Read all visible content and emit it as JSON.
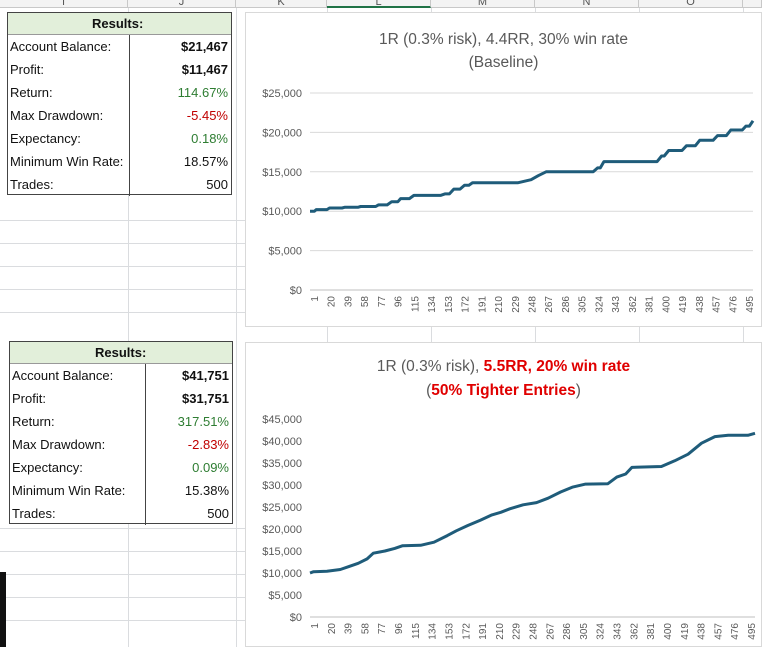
{
  "column_headers": [
    "I",
    "J",
    "K",
    "L",
    "M",
    "N",
    "O"
  ],
  "table1": {
    "header": "Results:",
    "rows": [
      {
        "label": "Account Balance:",
        "value": "$21,467",
        "style": "bold"
      },
      {
        "label": "Profit:",
        "value": "$11,467",
        "style": "bold"
      },
      {
        "label": "Return:",
        "value": "114.67%",
        "style": "green"
      },
      {
        "label": "Max Drawdown:",
        "value": "-5.45%",
        "style": "red"
      },
      {
        "label": "Expectancy:",
        "value": "0.18%",
        "style": "green"
      },
      {
        "label": "Minimum Win Rate:",
        "value": "18.57%",
        "style": "norm"
      },
      {
        "label": "Trades:",
        "value": "500",
        "style": "norm"
      }
    ]
  },
  "table2": {
    "header": "Results:",
    "rows": [
      {
        "label": "Account Balance:",
        "value": "$41,751",
        "style": "bold"
      },
      {
        "label": "Profit:",
        "value": "$31,751",
        "style": "bold"
      },
      {
        "label": "Return:",
        "value": "317.51%",
        "style": "green"
      },
      {
        "label": "Max Drawdown:",
        "value": "-2.83%",
        "style": "red"
      },
      {
        "label": "Expectancy:",
        "value": "0.09%",
        "style": "green"
      },
      {
        "label": "Minimum Win Rate:",
        "value": "15.38%",
        "style": "norm"
      },
      {
        "label": "Trades:",
        "value": "500",
        "style": "norm"
      }
    ]
  },
  "colors": {
    "line": "#1f5c7a",
    "header_fill": "#e2efda",
    "title_red": "#e00000"
  },
  "chart_data": [
    {
      "type": "line",
      "title_line1": "1R (0.3% risk), 4.4RR, 30% win rate",
      "title_line2": "(Baseline)",
      "xlabel": "",
      "ylabel": "",
      "x_ticks": [
        "1",
        "20",
        "39",
        "58",
        "77",
        "96",
        "115",
        "134",
        "153",
        "172",
        "191",
        "210",
        "229",
        "248",
        "267",
        "286",
        "305",
        "324",
        "343",
        "362",
        "381",
        "400",
        "419",
        "438",
        "457",
        "476",
        "495"
      ],
      "y_ticks": [
        "$0",
        "$5,000",
        "$10,000",
        "$15,000",
        "$20,000",
        "$25,000"
      ],
      "ylim": [
        0,
        25000
      ],
      "xlim": [
        1,
        500
      ],
      "grid": "horizontal",
      "series": [
        {
          "values": [
            [
              1,
              10000
            ],
            [
              6,
              10000
            ],
            [
              8,
              10200
            ],
            [
              20,
              10200
            ],
            [
              23,
              10400
            ],
            [
              37,
              10400
            ],
            [
              40,
              10500
            ],
            [
              55,
              10500
            ],
            [
              58,
              10600
            ],
            [
              75,
              10600
            ],
            [
              78,
              10800
            ],
            [
              88,
              10800
            ],
            [
              93,
              11200
            ],
            [
              100,
              11200
            ],
            [
              103,
              11600
            ],
            [
              113,
              11600
            ],
            [
              118,
              12000
            ],
            [
              148,
              12000
            ],
            [
              153,
              12200
            ],
            [
              158,
              12200
            ],
            [
              163,
              12800
            ],
            [
              170,
              12800
            ],
            [
              175,
              13300
            ],
            [
              180,
              13300
            ],
            [
              184,
              13600
            ],
            [
              235,
              13600
            ],
            [
              250,
              14000
            ],
            [
              258,
              14500
            ],
            [
              267,
              15000
            ],
            [
              320,
              15000
            ],
            [
              325,
              15500
            ],
            [
              328,
              15500
            ],
            [
              332,
              16300
            ],
            [
              392,
              16300
            ],
            [
              397,
              17000
            ],
            [
              400,
              17000
            ],
            [
              405,
              17700
            ],
            [
              420,
              17700
            ],
            [
              425,
              18300
            ],
            [
              435,
              18300
            ],
            [
              440,
              19000
            ],
            [
              455,
              19000
            ],
            [
              460,
              19600
            ],
            [
              470,
              19600
            ],
            [
              475,
              20300
            ],
            [
              488,
              20300
            ],
            [
              492,
              20800
            ],
            [
              496,
              20800
            ],
            [
              500,
              21467
            ]
          ]
        }
      ]
    },
    {
      "type": "line",
      "title_plain": "1R (0.3% risk), ",
      "title_red1": "5.5RR, 20% win rate",
      "title_open": "(",
      "title_red2": "50% Tighter Entries",
      "title_close": ")",
      "xlabel": "",
      "ylabel": "",
      "x_ticks": [
        "1",
        "20",
        "39",
        "58",
        "77",
        "96",
        "115",
        "134",
        "153",
        "172",
        "191",
        "210",
        "229",
        "248",
        "267",
        "286",
        "305",
        "324",
        "343",
        "362",
        "381",
        "400",
        "419",
        "438",
        "457",
        "476",
        "495"
      ],
      "y_ticks": [
        "$0",
        "$5,000",
        "$10,000",
        "$15,000",
        "$20,000",
        "$25,000",
        "$30,000",
        "$35,000",
        "$40,000",
        "$45,000"
      ],
      "ylim": [
        0,
        45000
      ],
      "xlim": [
        1,
        500
      ],
      "grid": "none",
      "series": [
        {
          "values": [
            [
              1,
              10000
            ],
            [
              5,
              10300
            ],
            [
              20,
              10400
            ],
            [
              35,
              10800
            ],
            [
              45,
              11500
            ],
            [
              55,
              12200
            ],
            [
              65,
              13200
            ],
            [
              72,
              14500
            ],
            [
              85,
              15000
            ],
            [
              96,
              15600
            ],
            [
              105,
              16200
            ],
            [
              125,
              16300
            ],
            [
              140,
              17000
            ],
            [
              155,
              18500
            ],
            [
              165,
              19600
            ],
            [
              178,
              20800
            ],
            [
              192,
              22000
            ],
            [
              205,
              23200
            ],
            [
              215,
              23800
            ],
            [
              225,
              24600
            ],
            [
              240,
              25500
            ],
            [
              255,
              26000
            ],
            [
              268,
              27000
            ],
            [
              282,
              28400
            ],
            [
              295,
              29500
            ],
            [
              310,
              30200
            ],
            [
              335,
              30300
            ],
            [
              345,
              31800
            ],
            [
              355,
              32500
            ],
            [
              362,
              34000
            ],
            [
              395,
              34200
            ],
            [
              410,
              35500
            ],
            [
              425,
              37000
            ],
            [
              440,
              39500
            ],
            [
              455,
              41000
            ],
            [
              470,
              41300
            ],
            [
              492,
              41300
            ],
            [
              500,
              41751
            ]
          ]
        }
      ]
    }
  ]
}
